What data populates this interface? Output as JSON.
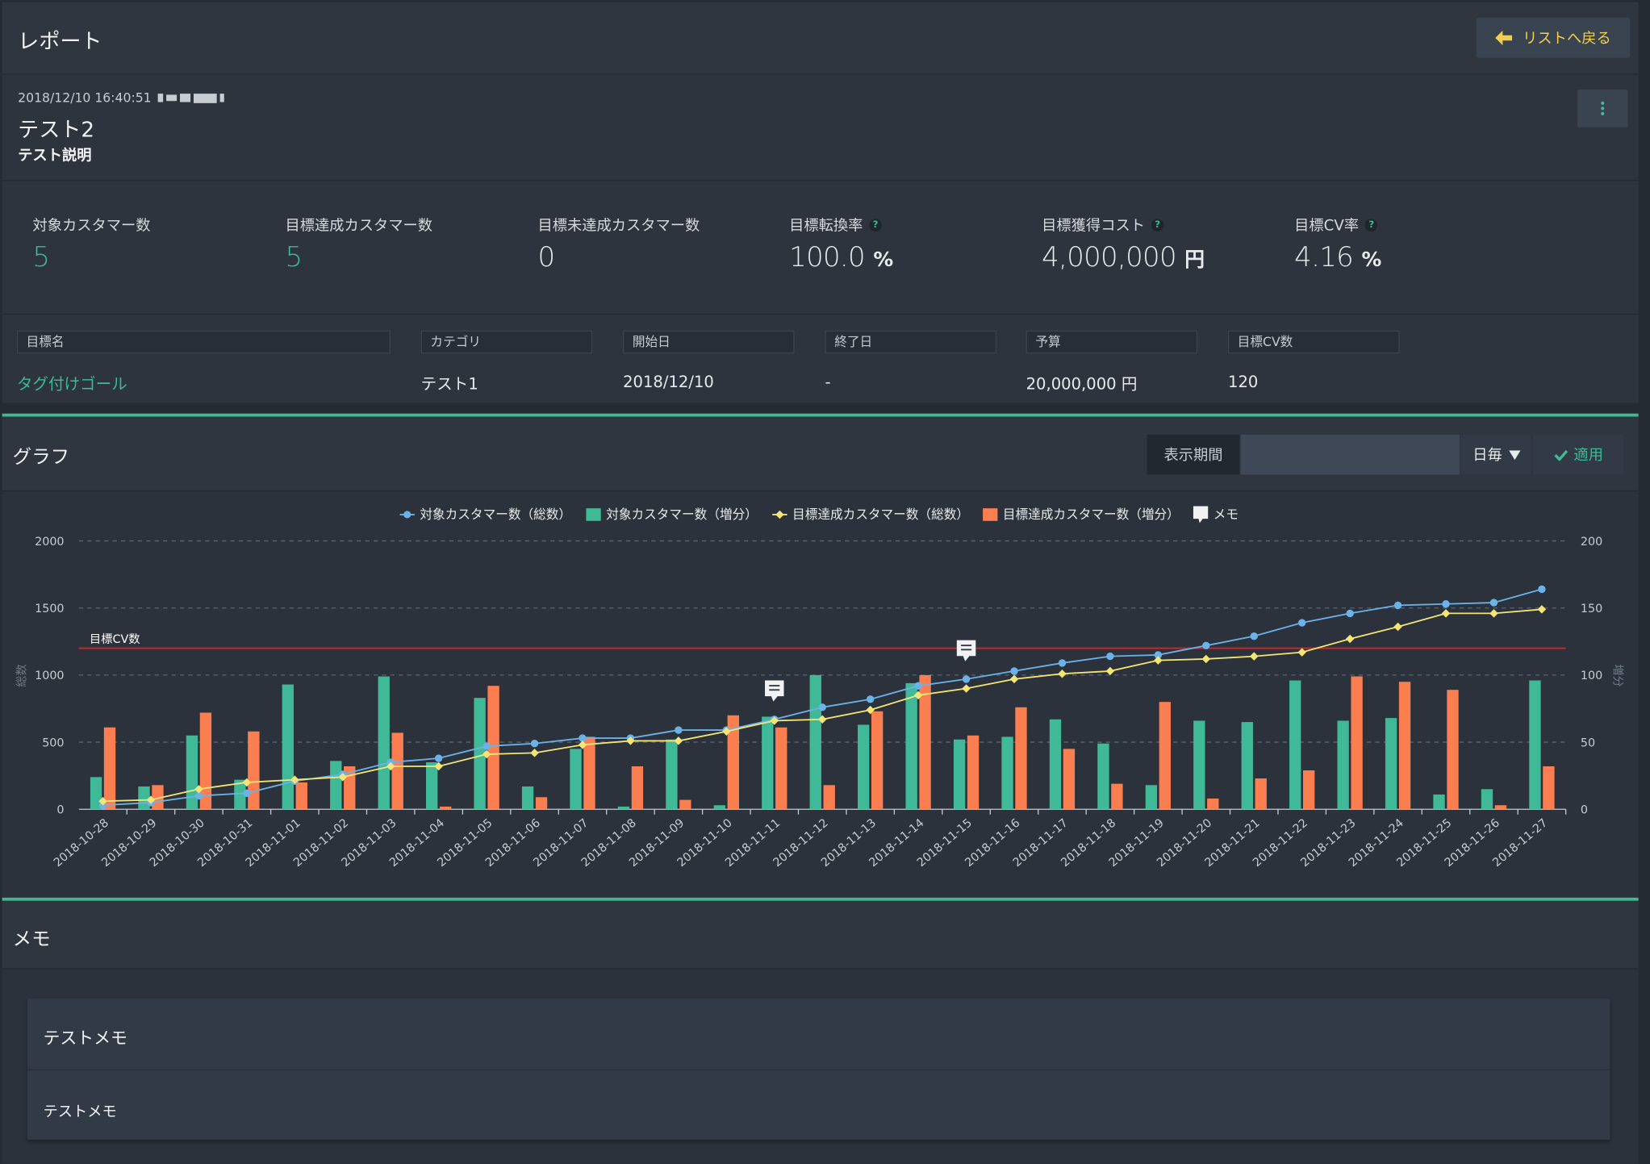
{
  "header": {
    "title": "レポート",
    "back_label": "リストへ戻る"
  },
  "report": {
    "timestamp": "2018/12/10 16:40:51",
    "name": "テスト2",
    "description": "テスト説明"
  },
  "stats": [
    {
      "label": "対象カスタマー数",
      "value": "5",
      "unit": "",
      "help": false,
      "teal": true
    },
    {
      "label": "目標達成カスタマー数",
      "value": "5",
      "unit": "",
      "help": false,
      "teal": true
    },
    {
      "label": "目標未達成カスタマー数",
      "value": "0",
      "unit": "",
      "help": false,
      "teal": false
    },
    {
      "label": "目標転換率",
      "value": "100.0",
      "unit": "%",
      "help": true,
      "teal": false
    },
    {
      "label": "目標獲得コスト",
      "value": "4,000,000",
      "unit": "円",
      "help": true,
      "teal": false
    },
    {
      "label": "目標CV率",
      "value": "4.16",
      "unit": "%",
      "help": true,
      "teal": false
    }
  ],
  "goal_table": {
    "headers": [
      "目標名",
      "カテゴリ",
      "開始日",
      "終了日",
      "予算",
      "目標CV数"
    ],
    "row": [
      "タグ付けゴール",
      "テスト1",
      "2018/12/10",
      "-",
      "20,000,000 円",
      "120"
    ]
  },
  "graph": {
    "title": "グラフ",
    "period_label": "表示期間",
    "period_value": "",
    "interval": "日毎",
    "apply_label": "適用"
  },
  "memo": {
    "title": "メモ",
    "items": [
      "テストメモ",
      "テストメモ"
    ]
  },
  "icons": {
    "back": "arrow-left-icon",
    "menu": "vertical-dots-icon",
    "apply": "check-icon",
    "memo": "comment-icon",
    "help": "question-icon"
  },
  "colors": {
    "accent_teal": "#3fb997",
    "bar_orange": "#fb7e51",
    "line_blue": "#6bb2e9",
    "line_yellow": "#f3e676",
    "target_red": "#c8282a",
    "back_icon_yellow": "#f0d04c"
  },
  "chart_data": {
    "type": "bar",
    "categories": [
      "2018-10-28",
      "2018-10-29",
      "2018-10-30",
      "2018-10-31",
      "2018-11-01",
      "2018-11-02",
      "2018-11-03",
      "2018-11-04",
      "2018-11-05",
      "2018-11-06",
      "2018-11-07",
      "2018-11-08",
      "2018-11-09",
      "2018-11-10",
      "2018-11-11",
      "2018-11-12",
      "2018-11-13",
      "2018-11-14",
      "2018-11-15",
      "2018-11-16",
      "2018-11-17",
      "2018-11-18",
      "2018-11-19",
      "2018-11-20",
      "2018-11-21",
      "2018-11-22",
      "2018-11-23",
      "2018-11-24",
      "2018-11-25",
      "2018-11-26",
      "2018-11-27"
    ],
    "legend": [
      "対象カスタマー数（総数）",
      "対象カスタマー数（増分）",
      "目標達成カスタマー数（総数）",
      "目標達成カスタマー数（増分）",
      "メモ"
    ],
    "series": [
      {
        "name": "対象カスタマー数（総数）",
        "type": "line",
        "axis": "left",
        "values": [
          30,
          50,
          100,
          120,
          210,
          260,
          350,
          380,
          470,
          490,
          530,
          530,
          590,
          590,
          670,
          760,
          820,
          920,
          970,
          1030,
          1090,
          1140,
          1150,
          1220,
          1290,
          1390,
          1460,
          1520,
          1530,
          1540,
          1640
        ]
      },
      {
        "name": "対象カスタマー数（増分）",
        "type": "bar",
        "axis": "right",
        "values": [
          24,
          17,
          55,
          22,
          93,
          36,
          99,
          35,
          83,
          17,
          45,
          2,
          52,
          3,
          69,
          100,
          63,
          94,
          52,
          54,
          67,
          49,
          18,
          66,
          65,
          96,
          66,
          68,
          11,
          15,
          96
        ]
      },
      {
        "name": "目標達成カスタマー数（総数）",
        "type": "line",
        "axis": "left",
        "values": [
          60,
          70,
          150,
          200,
          220,
          240,
          320,
          320,
          410,
          420,
          480,
          510,
          510,
          580,
          660,
          670,
          740,
          850,
          900,
          970,
          1010,
          1030,
          1110,
          1120,
          1140,
          1170,
          1270,
          1360,
          1460,
          1460,
          1490
        ]
      },
      {
        "name": "目標達成カスタマー数（増分）",
        "type": "bar",
        "axis": "right",
        "values": [
          61,
          18,
          72,
          58,
          20,
          32,
          57,
          2,
          92,
          9,
          54,
          32,
          7,
          70,
          61,
          18,
          73,
          100,
          55,
          76,
          45,
          19,
          80,
          8,
          23,
          29,
          99,
          95,
          89,
          3,
          32
        ]
      }
    ],
    "memo_markers": [
      "2018-11-11",
      "2018-11-15"
    ],
    "target_line": {
      "label": "目標CV数",
      "value": 120,
      "axis": "right"
    },
    "yaxis_left": {
      "label": "総数",
      "ylim": [
        0,
        2000
      ],
      "ticks": [
        0,
        500,
        1000,
        1500,
        2000
      ]
    },
    "yaxis_right": {
      "label": "増分",
      "ylim": [
        0,
        200
      ],
      "ticks": [
        0,
        50,
        100,
        150,
        200
      ]
    },
    "grid": true,
    "legend_position": "top-center"
  }
}
